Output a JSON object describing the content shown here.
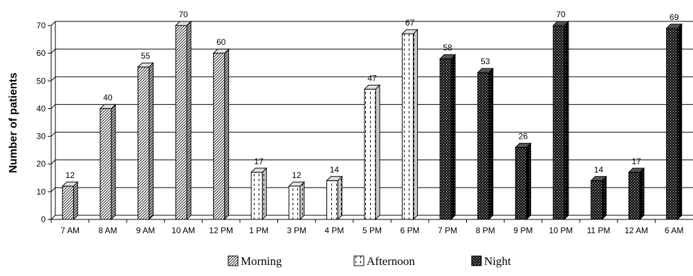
{
  "chart_data": {
    "type": "bar",
    "title": "",
    "xlabel": "",
    "ylabel": "Number of patients",
    "ylim": [
      0,
      70
    ],
    "yticks": [
      0,
      10,
      20,
      30,
      40,
      50,
      60,
      70
    ],
    "grid": true,
    "legend_position": "bottom",
    "categories": [
      "7 AM",
      "8 AM",
      "9 AM",
      "10 AM",
      "12 PM",
      "1 PM",
      "3 PM",
      "4 PM",
      "5 PM",
      "6 PM",
      "7 PM",
      "8 PM",
      "9 PM",
      "10 PM",
      "11 PM",
      "12 AM",
      "6 AM"
    ],
    "values": [
      12,
      40,
      55,
      70,
      60,
      17,
      12,
      14,
      47,
      67,
      58,
      53,
      26,
      70,
      14,
      17,
      69
    ],
    "groups": [
      "Morning",
      "Morning",
      "Morning",
      "Morning",
      "Morning",
      "Afternoon",
      "Afternoon",
      "Afternoon",
      "Afternoon",
      "Afternoon",
      "Night",
      "Night",
      "Night",
      "Night",
      "Night",
      "Night",
      "Night"
    ],
    "legend": [
      {
        "name": "Morning",
        "pattern": "diagonal-hatch"
      },
      {
        "name": "Afternoon",
        "pattern": "dashed-vertical"
      },
      {
        "name": "Night",
        "pattern": "dotted-dark"
      }
    ]
  }
}
